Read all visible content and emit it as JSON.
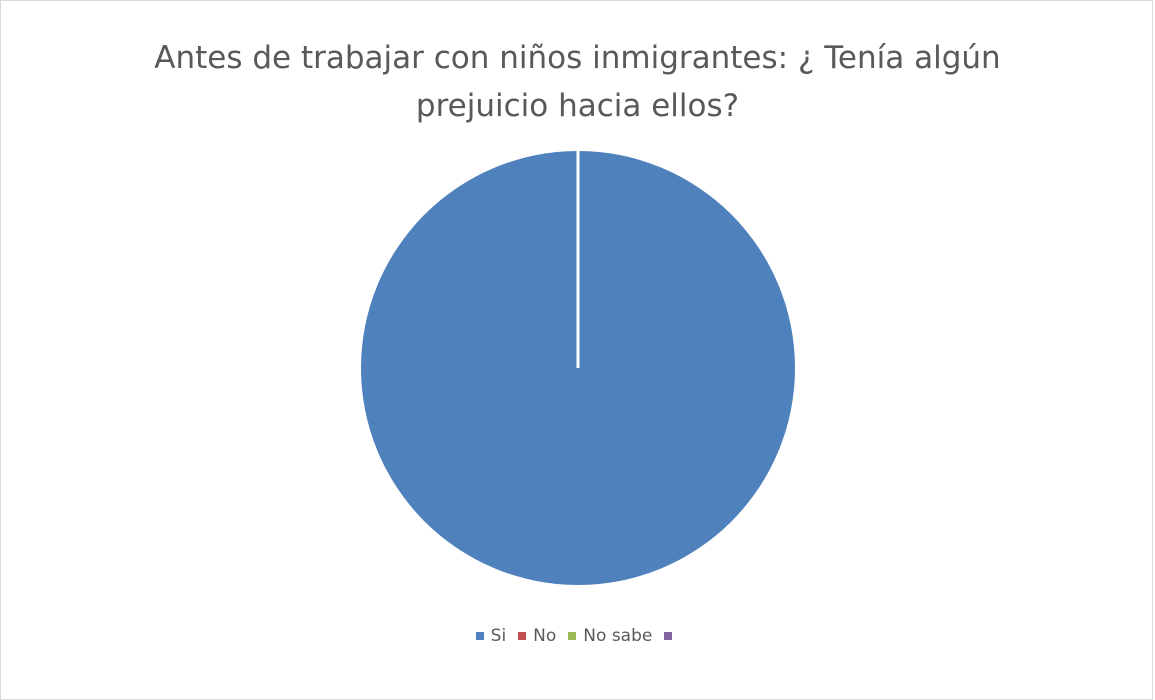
{
  "chart_data": {
    "type": "pie",
    "title_lines": [
      "Antes de trabajar con niños inmigrantes: ¿ Tenía algún",
      "prejuicio hacia ellos?"
    ],
    "categories": [
      "Si",
      "No",
      "No sabe",
      ""
    ],
    "values": [
      100,
      0,
      0,
      0
    ],
    "colors": [
      "#4f81bd",
      "#c0504d",
      "#9bbb59",
      "#8064a2"
    ],
    "legend_position": "bottom"
  }
}
